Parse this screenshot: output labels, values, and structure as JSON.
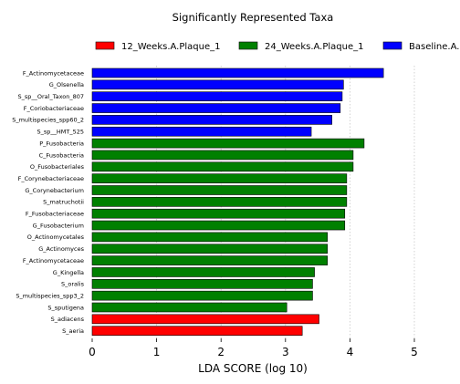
{
  "chart_data": {
    "type": "bar",
    "orientation": "horizontal",
    "title": "Significantly Represented Taxa",
    "xlabel": "LDA SCORE (log 10)",
    "ylabel": "",
    "xlim": [
      0,
      5
    ],
    "x_ticks": [
      "0",
      "1",
      "2",
      "3",
      "4",
      "5"
    ],
    "grid": "vertical dotted",
    "legend_placement": "top",
    "legend": [
      {
        "name": "12_Weeks.A.Plaque_1",
        "color": "#ff0000"
      },
      {
        "name": "24_Weeks.A.Plaque_1",
        "color": "#008000"
      },
      {
        "name": "Baseline.A.",
        "color": "#0000ff"
      }
    ],
    "categories": [
      "F_Actinomycetaceae",
      "G_Olsenella",
      "S_sp__Oral_Taxon_807",
      "F_Coriobacteriaceae",
      "S_multispecies_spp60_2",
      "S_sp__HMT_525",
      "P_Fusobacteria",
      "C_Fusobacteria",
      "O_Fusobacteriales",
      "F_Corynebacteriaceae",
      "G_Corynebacterium",
      "S_matruchotii",
      "F_Fusobacteriaceae",
      "G_Fusobacterium",
      "O_Actinomycetales",
      "G_Actinomyces",
      "F_Actinomycetaceae",
      "G_Kingella",
      "S_oralis",
      "S_multispecies_spp3_2",
      "S_sputigena",
      "S_adiacens",
      "S_aeria"
    ],
    "values": [
      4.52,
      3.9,
      3.88,
      3.85,
      3.72,
      3.4,
      4.22,
      4.05,
      4.05,
      3.95,
      3.95,
      3.95,
      3.92,
      3.92,
      3.65,
      3.65,
      3.65,
      3.45,
      3.42,
      3.42,
      3.02,
      3.52,
      3.26
    ],
    "groups": [
      "Baseline.A.",
      "Baseline.A.",
      "Baseline.A.",
      "Baseline.A.",
      "Baseline.A.",
      "Baseline.A.",
      "24_Weeks.A.Plaque_1",
      "24_Weeks.A.Plaque_1",
      "24_Weeks.A.Plaque_1",
      "24_Weeks.A.Plaque_1",
      "24_Weeks.A.Plaque_1",
      "24_Weeks.A.Plaque_1",
      "24_Weeks.A.Plaque_1",
      "24_Weeks.A.Plaque_1",
      "24_Weeks.A.Plaque_1",
      "24_Weeks.A.Plaque_1",
      "24_Weeks.A.Plaque_1",
      "24_Weeks.A.Plaque_1",
      "24_Weeks.A.Plaque_1",
      "24_Weeks.A.Plaque_1",
      "24_Weeks.A.Plaque_1",
      "12_Weeks.A.Plaque_1",
      "12_Weeks.A.Plaque_1"
    ]
  }
}
